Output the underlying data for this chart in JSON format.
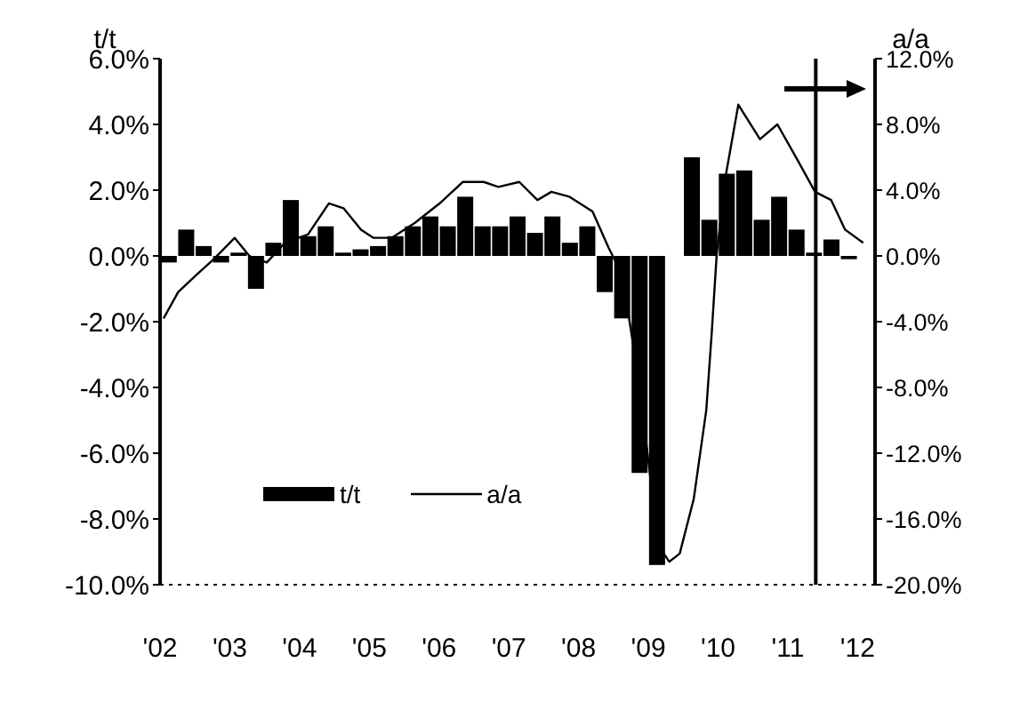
{
  "chart_data": {
    "type": "bar",
    "ylabel": "t/t",
    "y2label": "a/a",
    "xlim": [
      2002,
      2012.25
    ],
    "xticks": [
      {
        "value": 2002,
        "label": "'02"
      },
      {
        "value": 2003,
        "label": "'03"
      },
      {
        "value": 2004,
        "label": "'04"
      },
      {
        "value": 2005,
        "label": "'05"
      },
      {
        "value": 2006,
        "label": "'06"
      },
      {
        "value": 2007,
        "label": "'07"
      },
      {
        "value": 2008,
        "label": "'08"
      },
      {
        "value": 2009,
        "label": "'09"
      },
      {
        "value": 2010,
        "label": "'10"
      },
      {
        "value": 2011,
        "label": "'11"
      },
      {
        "value": 2012,
        "label": "'12"
      }
    ],
    "ylim": [
      -10,
      6
    ],
    "yticks": [
      {
        "value": -10,
        "label": "-10.0%"
      },
      {
        "value": -8,
        "label": "-8.0%"
      },
      {
        "value": -6,
        "label": "-6.0%"
      },
      {
        "value": -4,
        "label": "-4.0%"
      },
      {
        "value": -2,
        "label": "-2.0%"
      },
      {
        "value": 0,
        "label": "0.0%"
      },
      {
        "value": 2,
        "label": "2.0%"
      },
      {
        "value": 4,
        "label": "4.0%"
      },
      {
        "value": 6,
        "label": "6.0%"
      }
    ],
    "y2lim": [
      -20,
      12
    ],
    "y2ticks": [
      {
        "value": -20,
        "label": "-20.0%"
      },
      {
        "value": -16,
        "label": "-16.0%"
      },
      {
        "value": -12,
        "label": "-12.0%"
      },
      {
        "value": -8,
        "label": "-8.0%"
      },
      {
        "value": -4,
        "label": "-4.0%"
      },
      {
        "value": 0,
        "label": "0.0%"
      },
      {
        "value": 4,
        "label": "4.0%"
      },
      {
        "value": 8,
        "label": "8.0%"
      },
      {
        "value": 12,
        "label": "12.0%"
      }
    ],
    "series": [
      {
        "name": "t/t",
        "color": "#000000",
        "x": [
          2002.125,
          2002.375,
          2002.625,
          2002.875,
          2003.125,
          2003.375,
          2003.625,
          2003.875,
          2004.125,
          2004.375,
          2004.625,
          2004.875,
          2005.125,
          2005.375,
          2005.625,
          2005.875,
          2006.125,
          2006.375,
          2006.625,
          2006.875,
          2007.125,
          2007.375,
          2007.625,
          2007.875,
          2008.125,
          2008.375,
          2008.625,
          2008.875,
          2009.125,
          2009.375,
          2009.625,
          2009.875,
          2010.125,
          2010.375,
          2010.625,
          2010.875,
          2011.125,
          2011.375,
          2011.625,
          2011.875
        ],
        "values": [
          -0.2,
          0.8,
          0.3,
          -0.2,
          0.1,
          -1.0,
          0.4,
          1.7,
          0.6,
          0.9,
          0.1,
          0.2,
          0.3,
          0.6,
          0.9,
          1.2,
          0.9,
          1.8,
          0.9,
          0.9,
          1.2,
          0.7,
          1.2,
          0.4,
          0.9,
          -1.1,
          -1.9,
          -6.6,
          -9.4,
          0,
          3.0,
          1.1,
          2.5,
          2.6,
          1.1,
          1.8,
          0.8,
          0.1,
          0.5,
          -0.1
        ]
      },
      {
        "name": "a/a",
        "type": "line",
        "axis": "y2",
        "color": "#000000",
        "x": [
          2002.05,
          2002.26,
          2002.51,
          2002.77,
          2003.07,
          2003.28,
          2003.53,
          2003.79,
          2004.12,
          2004.42,
          2004.63,
          2004.88,
          2005.06,
          2005.32,
          2005.65,
          2006.01,
          2006.34,
          2006.64,
          2006.85,
          2007.15,
          2007.41,
          2007.61,
          2007.87,
          2008.2,
          2008.43,
          2008.63,
          2008.89,
          2009.14,
          2009.3,
          2009.45,
          2009.65,
          2009.83,
          2009.91,
          2009.98,
          2010.11,
          2010.29,
          2010.6,
          2010.85,
          2011.13,
          2011.39,
          2011.62,
          2011.82,
          2012.08
        ],
        "values": [
          -3.8,
          -2.2,
          -1.2,
          -0.2,
          1.1,
          0.0,
          -0.4,
          0.8,
          1.3,
          3.2,
          2.9,
          1.6,
          1.1,
          1.1,
          2.0,
          3.2,
          4.5,
          4.5,
          4.2,
          4.5,
          3.4,
          3.9,
          3.6,
          2.7,
          0.5,
          -1.2,
          -8.4,
          -17.6,
          -18.6,
          -18.1,
          -14.8,
          -9.4,
          -4.6,
          0.1,
          4.9,
          9.2,
          7.1,
          8.0,
          5.9,
          3.9,
          3.4,
          1.6,
          0.8
        ]
      }
    ],
    "ref_lines": [
      {
        "axis": "x",
        "value": 2011.4,
        "color": "#000000"
      }
    ],
    "legend": "bottom left",
    "grid": false,
    "marker": "none",
    "line_style": "solid"
  }
}
